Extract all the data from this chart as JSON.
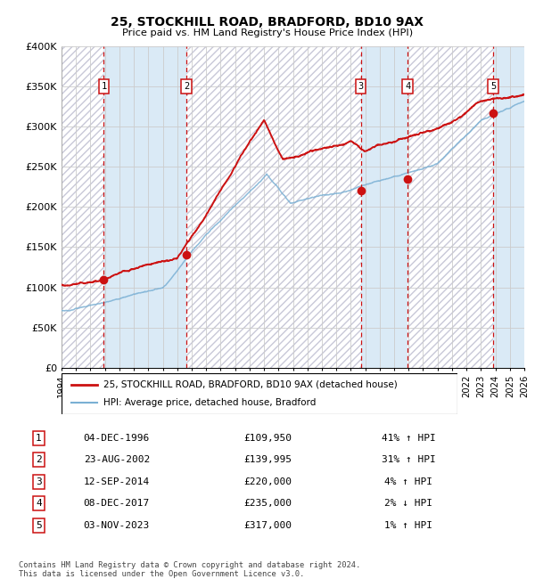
{
  "title": "25, STOCKHILL ROAD, BRADFORD, BD10 9AX",
  "subtitle": "Price paid vs. HM Land Registry's House Price Index (HPI)",
  "ylim": [
    0,
    400000
  ],
  "xlim": [
    1994.0,
    2026.0
  ],
  "yticks": [
    0,
    50000,
    100000,
    150000,
    200000,
    250000,
    300000,
    350000,
    400000
  ],
  "ytick_labels": [
    "£0",
    "£50K",
    "£100K",
    "£150K",
    "£200K",
    "£250K",
    "£300K",
    "£350K",
    "£400K"
  ],
  "sale_dates": [
    1996.92,
    2002.64,
    2014.7,
    2017.93,
    2023.84
  ],
  "sale_prices": [
    109950,
    139995,
    220000,
    235000,
    317000
  ],
  "sale_labels": [
    "1",
    "2",
    "3",
    "4",
    "5"
  ],
  "sale_date_strs": [
    "04-DEC-1996",
    "23-AUG-2002",
    "12-SEP-2014",
    "08-DEC-2017",
    "03-NOV-2023"
  ],
  "sale_price_strs": [
    "£109,950",
    "£139,995",
    "£220,000",
    "£235,000",
    "£317,000"
  ],
  "sale_hpi_strs": [
    "41% ↑ HPI",
    "31% ↑ HPI",
    "4% ↑ HPI",
    "2% ↓ HPI",
    "1% ↑ HPI"
  ],
  "hpi_line_color": "#7ab0d4",
  "price_line_color": "#cc1111",
  "point_color": "#cc1111",
  "vline_color": "#cc1111",
  "shade_color": "#daeaf6",
  "hatch_color": "#e0e0e8",
  "grid_color": "#cccccc",
  "bg_color": "#ffffff",
  "legend_label_red": "25, STOCKHILL ROAD, BRADFORD, BD10 9AX (detached house)",
  "legend_label_blue": "HPI: Average price, detached house, Bradford",
  "footer_text": "Contains HM Land Registry data © Crown copyright and database right 2024.\nThis data is licensed under the Open Government Licence v3.0.",
  "xtick_years": [
    1994,
    1995,
    1996,
    1997,
    1998,
    1999,
    2000,
    2001,
    2002,
    2003,
    2004,
    2005,
    2006,
    2007,
    2008,
    2009,
    2010,
    2011,
    2012,
    2013,
    2014,
    2015,
    2016,
    2017,
    2018,
    2019,
    2020,
    2021,
    2022,
    2023,
    2024,
    2025,
    2026
  ]
}
